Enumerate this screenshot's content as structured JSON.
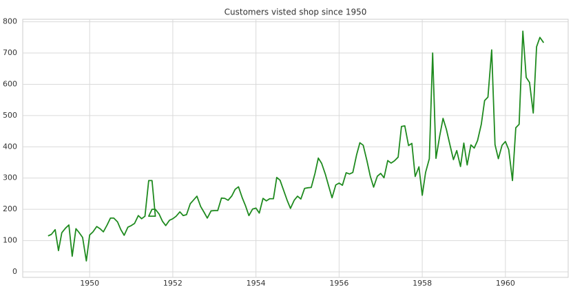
{
  "chart_data": {
    "type": "line",
    "title": "Customers visted shop since 1950",
    "x": [
      1949.0,
      1949.08,
      1949.17,
      1949.25,
      1949.33,
      1949.42,
      1949.5,
      1949.58,
      1949.67,
      1949.75,
      1949.83,
      1949.92,
      1950.0,
      1950.08,
      1950.17,
      1950.25,
      1950.33,
      1950.42,
      1950.5,
      1950.58,
      1950.67,
      1950.75,
      1950.83,
      1950.92,
      1951.0,
      1951.08,
      1951.17,
      1951.25,
      1951.33,
      1951.42,
      1951.5,
      1951.58,
      1951.42,
      1951.5,
      1951.58,
      1951.67,
      1951.75,
      1951.83,
      1951.92,
      1952.0,
      1952.08,
      1952.17,
      1952.25,
      1952.33,
      1952.42,
      1952.5,
      1952.58,
      1952.67,
      1952.75,
      1952.83,
      1952.92,
      1953.0,
      1953.08,
      1953.17,
      1953.25,
      1953.33,
      1953.42,
      1953.5,
      1953.58,
      1953.67,
      1953.75,
      1953.83,
      1953.92,
      1954.0,
      1954.08,
      1954.17,
      1954.25,
      1954.33,
      1954.42,
      1954.5,
      1954.58,
      1954.67,
      1954.75,
      1954.83,
      1954.92,
      1955.0,
      1955.08,
      1955.17,
      1955.25,
      1955.33,
      1955.42,
      1955.5,
      1955.58,
      1955.67,
      1955.75,
      1955.83,
      1955.92,
      1956.0,
      1956.08,
      1956.17,
      1956.25,
      1956.33,
      1956.42,
      1956.5,
      1956.58,
      1956.67,
      1956.75,
      1956.83,
      1956.92,
      1957.0,
      1957.08,
      1957.17,
      1957.25,
      1957.33,
      1957.42,
      1957.5,
      1957.58,
      1957.67,
      1957.75,
      1957.83,
      1957.92,
      1958.0,
      1958.08,
      1958.17,
      1958.25,
      1958.33,
      1958.42,
      1958.5,
      1958.58,
      1958.67,
      1958.75,
      1958.83,
      1958.92,
      1959.0,
      1959.08,
      1959.17,
      1959.25,
      1959.33,
      1959.42,
      1959.5,
      1959.58,
      1959.67,
      1959.75,
      1959.83,
      1959.92,
      1960.0,
      1960.08,
      1960.17,
      1960.25,
      1960.33,
      1960.42,
      1960.5,
      1960.58,
      1960.67,
      1960.75,
      1960.83,
      1960.92
    ],
    "values": [
      115,
      120,
      135,
      68,
      125,
      140,
      150,
      50,
      138,
      125,
      110,
      35,
      118,
      128,
      145,
      138,
      128,
      150,
      172,
      172,
      160,
      135,
      117,
      143,
      148,
      155,
      180,
      170,
      178,
      292,
      292,
      178,
      178,
      200,
      200,
      185,
      162,
      148,
      165,
      170,
      178,
      192,
      180,
      183,
      218,
      230,
      242,
      209,
      191,
      172,
      195,
      196,
      196,
      236,
      235,
      229,
      243,
      264,
      272,
      237,
      211,
      180,
      201,
      204,
      188,
      235,
      227,
      234,
      234,
      302,
      293,
      259,
      229,
      203,
      229,
      242,
      233,
      267,
      269,
      270,
      315,
      364,
      347,
      312,
      274,
      237,
      278,
      284,
      277,
      317,
      313,
      318,
      374,
      413,
      405,
      355,
      306,
      271,
      306,
      315,
      301,
      356,
      348,
      355,
      367,
      465,
      467,
      404,
      411,
      305,
      336,
      245,
      318,
      362,
      700,
      363,
      435,
      491,
      456,
      404,
      359,
      388,
      337,
      412,
      342,
      406,
      396,
      420,
      472,
      548,
      559,
      710,
      407,
      362,
      405,
      417,
      391,
      292,
      461,
      472,
      770,
      622,
      606,
      508,
      720,
      750,
      733
    ],
    "color": "#1e8a1e",
    "xlim": [
      1948.39,
      1961.51
    ],
    "ylim": [
      -17.6,
      808
    ],
    "xticks": [
      1950,
      1952,
      1954,
      1956,
      1958,
      1960
    ],
    "yticks": [
      0,
      100,
      200,
      300,
      400,
      500,
      600,
      700,
      800
    ],
    "grid": true
  }
}
